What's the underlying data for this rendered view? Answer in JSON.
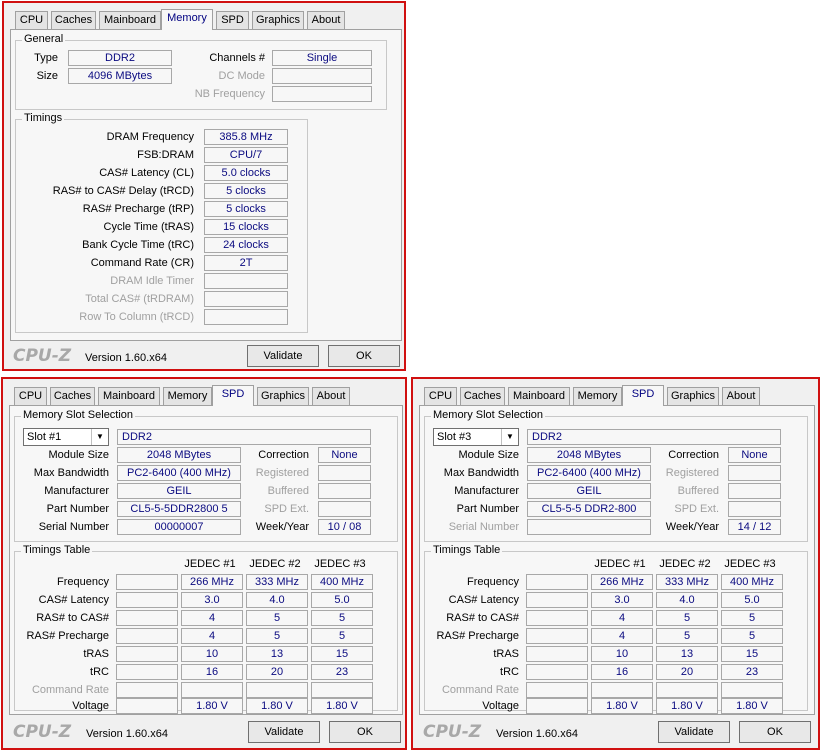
{
  "tabs": [
    "CPU",
    "Caches",
    "Mainboard",
    "Memory",
    "SPD",
    "Graphics",
    "About"
  ],
  "footer": {
    "logo": "CPU-Z",
    "version": "Version 1.60.x64",
    "validate": "Validate",
    "ok": "OK"
  },
  "memory": {
    "general_title": "General",
    "type_label": "Type",
    "type_value": "DDR2",
    "size_label": "Size",
    "size_value": "4096 MBytes",
    "channels_label": "Channels #",
    "channels_value": "Single",
    "dc_mode_label": "DC Mode",
    "dc_mode_value": "",
    "nb_freq_label": "NB Frequency",
    "nb_freq_value": "",
    "timings_title": "Timings",
    "timings": [
      {
        "label": "DRAM Frequency",
        "value": "385.8 MHz"
      },
      {
        "label": "FSB:DRAM",
        "value": "CPU/7"
      },
      {
        "label": "CAS# Latency (CL)",
        "value": "5.0 clocks"
      },
      {
        "label": "RAS# to CAS# Delay (tRCD)",
        "value": "5 clocks"
      },
      {
        "label": "RAS# Precharge (tRP)",
        "value": "5 clocks"
      },
      {
        "label": "Cycle Time (tRAS)",
        "value": "15 clocks"
      },
      {
        "label": "Bank Cycle Time (tRC)",
        "value": "24 clocks"
      },
      {
        "label": "Command Rate (CR)",
        "value": "2T"
      },
      {
        "label": "DRAM Idle Timer",
        "value": ""
      },
      {
        "label": "Total CAS# (tRDRAM)",
        "value": ""
      },
      {
        "label": "Row To Column (tRCD)",
        "value": ""
      }
    ]
  },
  "spd_labels": {
    "slot_title": "Memory Slot Selection",
    "module_size": "Module Size",
    "max_bandwidth": "Max Bandwidth",
    "manufacturer": "Manufacturer",
    "part_number": "Part Number",
    "serial_number": "Serial Number",
    "correction": "Correction",
    "registered": "Registered",
    "buffered": "Buffered",
    "spd_ext": "SPD Ext.",
    "week_year": "Week/Year",
    "timings_table_title": "Timings Table",
    "cols": [
      "JEDEC #1",
      "JEDEC #2",
      "JEDEC #3"
    ],
    "rows": [
      "Frequency",
      "CAS# Latency",
      "RAS# to CAS#",
      "RAS# Precharge",
      "tRAS",
      "tRC",
      "Command Rate",
      "Voltage"
    ]
  },
  "spd1": {
    "slot": "Slot #1",
    "type": "DDR2",
    "module_size": "2048 MBytes",
    "max_bandwidth": "PC2-6400 (400 MHz)",
    "manufacturer": "GEIL",
    "part_number": "CL5-5-5DDR2800  5",
    "serial_number": "00000007",
    "correction": "None",
    "week_year": "10 / 08",
    "table": [
      [
        "266 MHz",
        "333 MHz",
        "400 MHz"
      ],
      [
        "3.0",
        "4.0",
        "5.0"
      ],
      [
        "4",
        "5",
        "5"
      ],
      [
        "4",
        "5",
        "5"
      ],
      [
        "10",
        "13",
        "15"
      ],
      [
        "16",
        "20",
        "23"
      ],
      [
        "",
        "",
        ""
      ],
      [
        "1.80 V",
        "1.80 V",
        "1.80 V"
      ]
    ]
  },
  "spd3": {
    "slot": "Slot #3",
    "type": "DDR2",
    "module_size": "2048 MBytes",
    "max_bandwidth": "PC2-6400 (400 MHz)",
    "manufacturer": "GEIL",
    "part_number": "CL5-5-5  DDR2-800",
    "serial_number": "",
    "correction": "None",
    "week_year": "14 / 12",
    "table": [
      [
        "266 MHz",
        "333 MHz",
        "400 MHz"
      ],
      [
        "3.0",
        "4.0",
        "5.0"
      ],
      [
        "4",
        "5",
        "5"
      ],
      [
        "4",
        "5",
        "5"
      ],
      [
        "10",
        "13",
        "15"
      ],
      [
        "16",
        "20",
        "23"
      ],
      [
        "",
        "",
        ""
      ],
      [
        "1.80 V",
        "1.80 V",
        "1.80 V"
      ]
    ]
  }
}
